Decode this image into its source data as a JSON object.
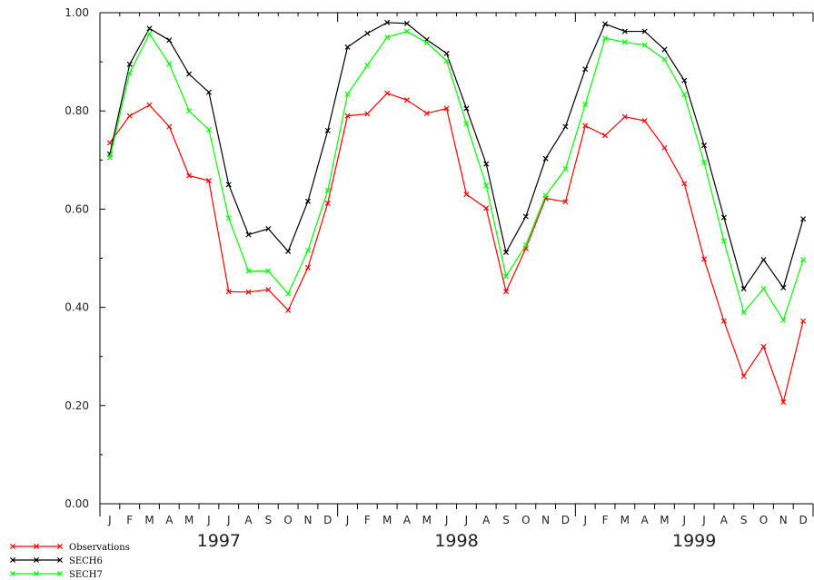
{
  "chart_data": {
    "type": "line",
    "title": "",
    "xlabel": "",
    "ylabel": "",
    "ylim": [
      0,
      1
    ],
    "y_ticks": [
      "0.00",
      "0.20",
      "0.40",
      "0.60",
      "0.80",
      "1.00"
    ],
    "x_tick_labels": [
      "J",
      "F",
      "M",
      "A",
      "M",
      "J",
      "J",
      "A",
      "S",
      "O",
      "N",
      "D",
      "J",
      "F",
      "M",
      "A",
      "M",
      "J",
      "J",
      "A",
      "S",
      "O",
      "N",
      "D",
      "J",
      "F",
      "M",
      "A",
      "M",
      "J",
      "J",
      "A",
      "S",
      "O",
      "N",
      "D"
    ],
    "years": [
      "1997",
      "1998",
      "1999"
    ],
    "grid": false,
    "legend_position": "bottom-left",
    "series": [
      {
        "name": "Observations",
        "color": "#ff0000",
        "values": [
          0.735,
          0.79,
          0.812,
          0.768,
          0.668,
          0.658,
          0.432,
          0.431,
          0.436,
          0.394,
          0.481,
          0.612,
          0.79,
          0.794,
          0.836,
          0.822,
          0.795,
          0.805,
          0.63,
          0.602,
          0.432,
          0.52,
          0.622,
          0.615,
          0.77,
          0.75,
          0.788,
          0.78,
          0.725,
          0.652,
          0.498,
          0.372,
          0.26,
          0.32,
          0.207,
          0.372
        ]
      },
      {
        "name": "SECH6",
        "color": "#000000",
        "values": [
          0.712,
          0.895,
          0.968,
          0.944,
          0.875,
          0.838,
          0.65,
          0.548,
          0.56,
          0.514,
          0.616,
          0.76,
          0.93,
          0.958,
          0.98,
          0.978,
          0.945,
          0.917,
          0.805,
          0.692,
          0.512,
          0.585,
          0.703,
          0.768,
          0.885,
          0.977,
          0.962,
          0.962,
          0.925,
          0.862,
          0.73,
          0.583,
          0.438,
          0.497,
          0.44,
          0.58
        ]
      },
      {
        "name": "SECH7",
        "color": "#00ff00",
        "values": [
          0.705,
          0.877,
          0.957,
          0.896,
          0.8,
          0.762,
          0.582,
          0.474,
          0.474,
          0.428,
          0.516,
          0.638,
          0.834,
          0.893,
          0.95,
          0.962,
          0.939,
          0.902,
          0.774,
          0.648,
          0.463,
          0.527,
          0.628,
          0.682,
          0.813,
          0.948,
          0.94,
          0.934,
          0.905,
          0.833,
          0.695,
          0.535,
          0.39,
          0.438,
          0.374,
          0.497
        ]
      }
    ]
  }
}
